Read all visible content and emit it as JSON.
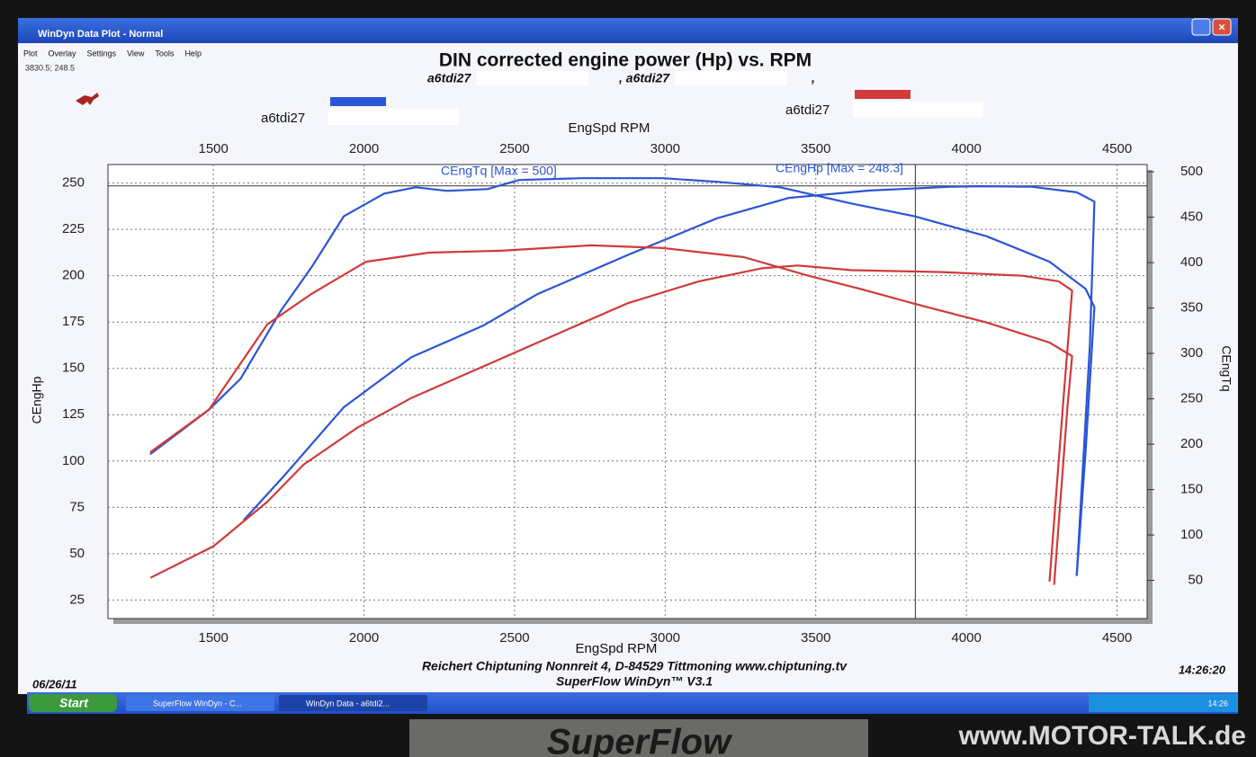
{
  "window": {
    "title": "WinDyn Data Plot - Normal",
    "menu": [
      "Plot",
      "Overlay",
      "Settings",
      "View",
      "Tools",
      "Help"
    ],
    "status": "3830.5; 248.5"
  },
  "taskbar": {
    "start": "Start",
    "tasks": [
      "SuperFlow WinDyn - C...",
      "WinDyn Data - a6tdi2..."
    ],
    "clock": "14:26"
  },
  "watermark": "www.MOTOR-TALK.de",
  "monitor_label": "SuperFlow",
  "chart_data": {
    "type": "line",
    "title": "DIN corrected engine power (Hp) vs. RPM",
    "subtitle": [
      "a6tdi27",
      ", a6tdi27",
      ","
    ],
    "legend": [
      {
        "name": "a6tdi27",
        "color": "#2a55d6"
      },
      {
        "name": "a6tdi27",
        "color": "#d03a3a"
      }
    ],
    "xlabel": "EngSpd RPM",
    "ylabel": "CEngHp",
    "y2label": "CEngTq",
    "xlim": [
      1150,
      4600
    ],
    "xticks": [
      1500,
      2000,
      2500,
      3000,
      3500,
      4000,
      4500
    ],
    "ylim": [
      15,
      260
    ],
    "yticks": [
      25,
      50,
      75,
      100,
      125,
      150,
      175,
      200,
      225,
      250
    ],
    "y2lim": [
      8,
      508
    ],
    "y2ticks": [
      50,
      100,
      150,
      200,
      250,
      300,
      350,
      400,
      450,
      500
    ],
    "grid": true,
    "cursor": {
      "x": 3830.5,
      "y": 248.5
    },
    "annotations": [
      "CEngTq [Max = 500]",
      "CEngHp [Max = 248.3]"
    ],
    "footer": [
      "Reichert Chiptuning Nonnreit 4, D-84529 Tittmoning www.chiptuning.tv",
      "SuperFlow WinDyn™ V3.1"
    ],
    "date": "06/26/11",
    "time": "14:26:20",
    "series": [
      {
        "color": "#2a55d6",
        "axis": "y2",
        "x": [
          1290,
          1485,
          1590,
          1724,
          1828,
          1933,
          2067,
          2172,
          2276,
          2410,
          2515,
          2724,
          2993,
          3172,
          3381,
          3619,
          3828,
          4067,
          4276,
          4396,
          4425,
          4396,
          4366
        ],
        "values": [
          189,
          238,
          272,
          347,
          396,
          451,
          476,
          483,
          479,
          481,
          491,
          493,
          493,
          489,
          483,
          465,
          451,
          429,
          401,
          371,
          351,
          193,
          55
        ]
      },
      {
        "color": "#2a55d6",
        "axis": "y",
        "x": [
          1600,
          1739,
          1933,
          2157,
          2395,
          2575,
          2873,
          3172,
          3411,
          3679,
          3948,
          4050,
          4216,
          4366,
          4425,
          4410,
          4366
        ],
        "values": [
          68,
          92.8,
          129,
          156,
          173,
          190,
          211,
          231,
          242,
          246,
          248,
          248.3,
          248,
          245,
          240,
          163,
          38
        ]
      },
      {
        "color": "#d03a3a",
        "axis": "y2",
        "x": [
          1290,
          1485,
          1679,
          1828,
          2007,
          2216,
          2455,
          2754,
          2993,
          3261,
          3470,
          3649,
          3858,
          4067,
          4276,
          4351,
          4336,
          4291
        ],
        "values": [
          191,
          238,
          332,
          366,
          401,
          411,
          413,
          419,
          416,
          406,
          386,
          371,
          352,
          334,
          312,
          297,
          243,
          45
        ]
      },
      {
        "color": "#d03a3a",
        "axis": "y",
        "x": [
          1291,
          1500,
          1679,
          1799,
          1978,
          2157,
          2395,
          2634,
          2873,
          3112,
          3321,
          3440,
          3619,
          3918,
          4187,
          4306,
          4351,
          4321,
          4276
        ],
        "values": [
          37,
          54,
          78,
          98,
          118,
          134,
          151,
          168,
          185,
          197,
          204,
          205.5,
          203,
          202,
          200,
          197,
          192,
          131,
          35
        ]
      }
    ]
  }
}
